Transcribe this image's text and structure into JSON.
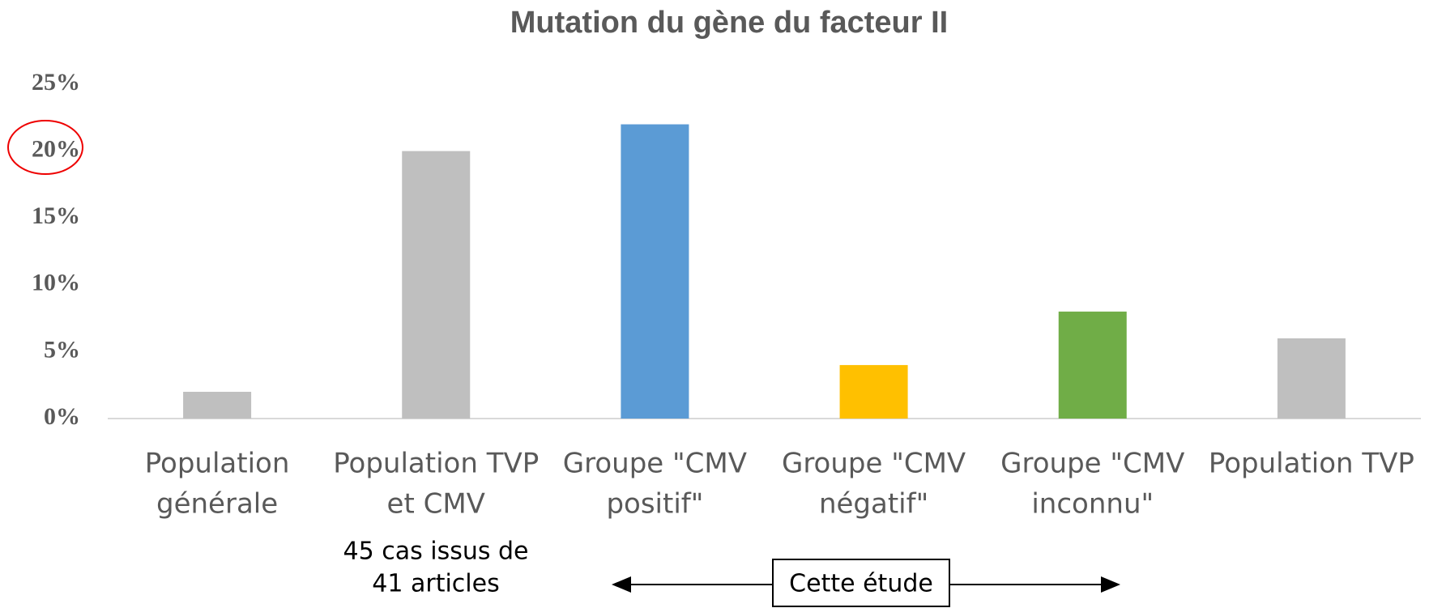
{
  "chart_data": {
    "type": "bar",
    "title": "Mutation du gène du facteur II",
    "categories": [
      [
        "Population",
        "générale"
      ],
      [
        "Population TVP",
        "et CMV"
      ],
      [
        "Groupe \"CMV",
        "positif\""
      ],
      [
        "Groupe \"CMV",
        "négatif\""
      ],
      [
        "Groupe \"CMV",
        "inconnu\""
      ],
      [
        "Population TVP"
      ]
    ],
    "values": [
      2,
      20,
      22,
      4,
      8,
      6
    ],
    "colors": [
      "#bfbfbf",
      "#bfbfbf",
      "#5b9bd5",
      "#ffc000",
      "#70ad47",
      "#bfbfbf"
    ],
    "ylim": [
      0,
      25
    ],
    "yticks": [
      {
        "value": 0,
        "label": "0%"
      },
      {
        "value": 5,
        "label": "5%"
      },
      {
        "value": 10,
        "label": "10%"
      },
      {
        "value": 15,
        "label": "15%"
      },
      {
        "value": 20,
        "label": "20%"
      },
      {
        "value": 25,
        "label": "25%"
      }
    ],
    "annotations": {
      "source": [
        "45 cas issus de",
        "41 articles"
      ],
      "study": "Cette étude"
    }
  }
}
